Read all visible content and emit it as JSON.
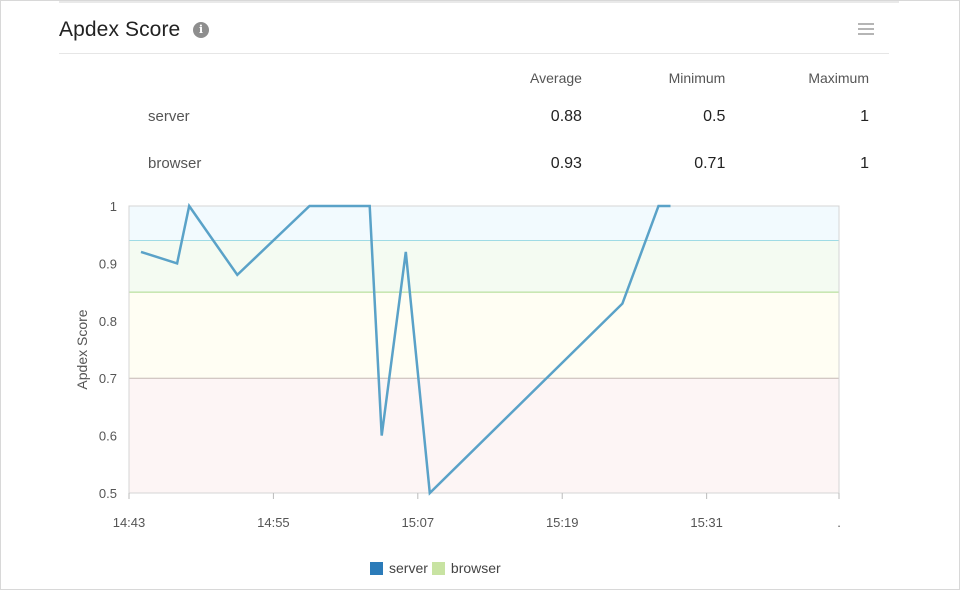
{
  "header": {
    "title": "Apdex Score",
    "info_icon": "info-icon",
    "menu_icon": "hamburger-menu-icon"
  },
  "stats": {
    "columns": [
      "Average",
      "Minimum",
      "Maximum"
    ],
    "rows": [
      {
        "label": "server",
        "average": "0.88",
        "minimum": "0.5",
        "maximum": "1"
      },
      {
        "label": "browser",
        "average": "0.93",
        "minimum": "0.71",
        "maximum": "1"
      }
    ]
  },
  "legend": {
    "items": [
      {
        "label": "server",
        "color": "#2b7bb9"
      },
      {
        "label": "browser",
        "color": "#c8e3a2"
      }
    ]
  },
  "chart_data": {
    "type": "line",
    "title": "",
    "xlabel": "",
    "ylabel": "Apdex Score",
    "ylim": [
      0.5,
      1.0
    ],
    "xlim": [
      "14:43",
      "15:42"
    ],
    "yticks": [
      "0.5",
      "0.6",
      "0.7",
      "0.8",
      "0.9",
      "1"
    ],
    "xticks": [
      "14:43",
      "14:55",
      "15:07",
      "15:19",
      "15:31",
      "."
    ],
    "line_color": "#5aa2c8",
    "bands": [
      {
        "from": 0.94,
        "to": 1.0,
        "fill": "#f2fafe",
        "line": "#9fdbe5"
      },
      {
        "from": 0.85,
        "to": 0.94,
        "fill": "#f4fbf2",
        "line": "#a9d98c"
      },
      {
        "from": 0.7,
        "to": 0.85,
        "fill": "#fffef3",
        "line": "#c5b9b3"
      },
      {
        "from": 0.5,
        "to": 0.7,
        "fill": "#fdf5f5",
        "line": "#d6cccc"
      }
    ],
    "series": [
      {
        "name": "server",
        "points": [
          [
            "14:44",
            0.92
          ],
          [
            "14:47",
            0.9
          ],
          [
            "14:48",
            1.0
          ],
          [
            "14:52",
            0.88
          ],
          [
            "14:58",
            1.0
          ],
          [
            "15:03",
            1.0
          ],
          [
            "15:04",
            0.6
          ],
          [
            "15:06",
            0.92
          ],
          [
            "15:08",
            0.5
          ],
          [
            "15:24",
            0.83
          ],
          [
            "15:27",
            1.0
          ],
          [
            "15:28",
            1.0
          ]
        ]
      }
    ]
  }
}
